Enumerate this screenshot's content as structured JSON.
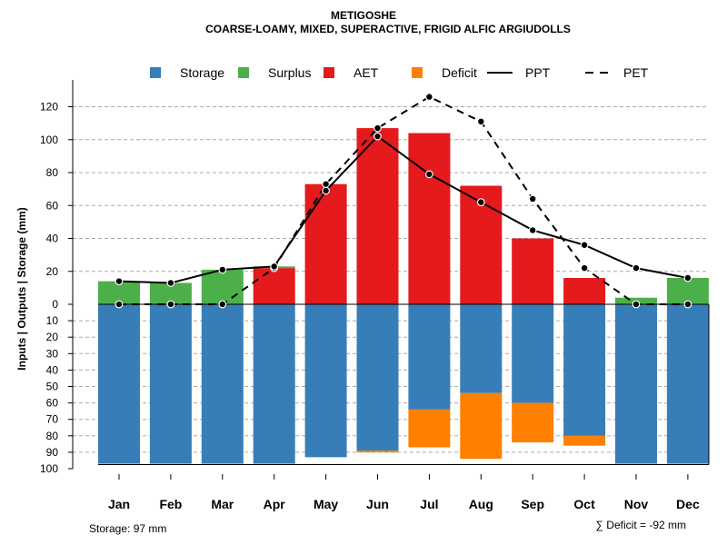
{
  "chart_data": {
    "type": "bar",
    "title": "METIGOSHE",
    "subtitle": "COARSE-LOAMY, MIXED, SUPERACTIVE, FRIGID ALFIC ARGIUDOLLS",
    "ylabel": "Inputs | Outputs | Storage     (mm)",
    "categories": [
      "Jan",
      "Feb",
      "Mar",
      "Apr",
      "May",
      "Jun",
      "Jul",
      "Aug",
      "Sep",
      "Oct",
      "Nov",
      "Dec"
    ],
    "legend": [
      {
        "name": "Storage",
        "symbol": "square",
        "color": "#377EB8"
      },
      {
        "name": "Surplus",
        "symbol": "square",
        "color": "#4DAF4A"
      },
      {
        "name": "AET",
        "symbol": "square",
        "color": "#E41A1C"
      },
      {
        "name": "Deficit",
        "symbol": "square",
        "color": "#FF7F00"
      },
      {
        "name": "PPT",
        "symbol": "solid-line",
        "color": "#000000"
      },
      {
        "name": "PET",
        "symbol": "dashed-line",
        "color": "#000000"
      }
    ],
    "series": [
      {
        "name": "Surplus",
        "values": [
          14,
          13,
          21,
          1,
          0,
          0,
          0,
          0,
          0,
          0,
          4,
          16
        ]
      },
      {
        "name": "AET",
        "values": [
          0,
          0,
          0,
          22,
          73,
          107,
          104,
          72,
          40,
          16,
          0,
          0
        ]
      },
      {
        "name": "Storage",
        "values": [
          97,
          97,
          97,
          97,
          93,
          89,
          64,
          54,
          60,
          80,
          97,
          97
        ]
      },
      {
        "name": "Deficit",
        "values": [
          0,
          0,
          0,
          0,
          0,
          1,
          23,
          40,
          24,
          6,
          0,
          0
        ]
      },
      {
        "name": "PPT",
        "values": [
          14,
          13,
          21,
          23,
          69,
          102,
          79,
          62,
          45,
          36,
          22,
          16
        ]
      },
      {
        "name": "PET",
        "values": [
          0,
          0,
          0,
          22,
          73,
          107,
          126,
          111,
          64,
          22,
          0,
          0
        ]
      }
    ],
    "y_upper_ticks": [
      0,
      20,
      40,
      60,
      80,
      100,
      120
    ],
    "y_lower_ticks": [
      10,
      20,
      30,
      40,
      50,
      60,
      70,
      80,
      90,
      100
    ],
    "y_upper_range": [
      0,
      130
    ],
    "y_lower_range": [
      0,
      100
    ],
    "grid": true,
    "legend_position": "top",
    "footer_left": "Storage: 97 mm",
    "footer_right": "∑ Deficit = -92 mm",
    "colors": {
      "storage": "#377EB8",
      "surplus": "#4DAF4A",
      "aet": "#E41A1C",
      "deficit": "#FF7F00",
      "lines": "#000000",
      "grid": "#AAAAAA"
    }
  }
}
